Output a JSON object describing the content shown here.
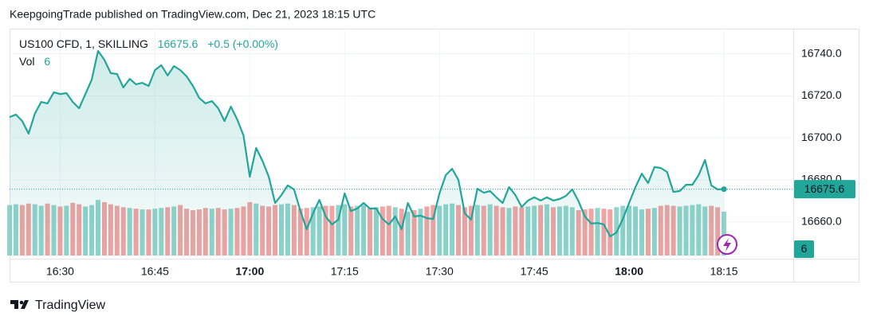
{
  "attribution": "KeepgoingTrade published on TradingView.com, Dec 21, 2023 18:15 UTC",
  "brand": "TradingView",
  "chart_data": {
    "type": "line",
    "change": "+0.5 (+0.00%)",
    "categories": [
      null,
      null,
      null,
      null,
      null,
      null,
      null,
      null,
      "16:30",
      null,
      null,
      null,
      null,
      null,
      null,
      null,
      null,
      null,
      null,
      null,
      null,
      null,
      null,
      "16:45",
      null,
      null,
      null,
      null,
      null,
      null,
      null,
      null,
      null,
      null,
      null,
      null,
      null,
      null,
      "17:00",
      null,
      null,
      null,
      null,
      null,
      null,
      null,
      null,
      null,
      null,
      null,
      null,
      null,
      null,
      "17:15",
      null,
      null,
      null,
      null,
      null,
      null,
      null,
      null,
      null,
      null,
      null,
      null,
      null,
      null,
      "17:30",
      null,
      null,
      null,
      null,
      null,
      null,
      null,
      null,
      null,
      null,
      null,
      null,
      null,
      null,
      "17:45",
      null,
      null,
      null,
      null,
      null,
      null,
      null,
      null,
      null,
      null,
      null,
      null,
      null,
      null,
      "18:00",
      null,
      null,
      null,
      null,
      null,
      null,
      null,
      null,
      null,
      null,
      null,
      null,
      null,
      null,
      "18:15"
    ],
    "series": [
      {
        "name": "US100 CFD, 1, SKILLING",
        "color": "#22a69a",
        "values": [
          16709.9,
          16711.1,
          16708.0,
          16702.0,
          16711.5,
          16717.1,
          16716.4,
          16721.7,
          16720.9,
          16721.3,
          16717.1,
          16714.1,
          16720.9,
          16727.8,
          16741.4,
          16737.2,
          16730.8,
          16730.4,
          16724.0,
          16728.1,
          16725.5,
          16726.2,
          16724.7,
          16732.3,
          16734.6,
          16729.7,
          16734.2,
          16732.3,
          16729.3,
          16724.7,
          16719.0,
          16716.4,
          16717.5,
          16714.1,
          16708.0,
          16714.9,
          16708.8,
          16701.2,
          16681.5,
          16695.2,
          16689.1,
          16681.5,
          16669.0,
          16672.8,
          16677.4,
          16675.5,
          16665.2,
          16656.5,
          16664.1,
          16670.5,
          16662.6,
          16658.8,
          16661.1,
          16673.6,
          16665.2,
          16666.4,
          16669.0,
          16666.4,
          16666.4,
          16661.4,
          16658.8,
          16662.6,
          16656.5,
          16669.0,
          16662.6,
          16663.0,
          16661.8,
          16661.4,
          16673.6,
          16682.3,
          16685.3,
          16680.0,
          16664.1,
          16661.1,
          16675.8,
          16673.9,
          16674.7,
          16671.7,
          16669.0,
          16676.6,
          16672.8,
          16667.1,
          16670.2,
          16671.7,
          16670.2,
          16671.7,
          16670.2,
          16670.9,
          16672.4,
          16675.5,
          16669.8,
          16662.6,
          16659.2,
          16659.5,
          16658.8,
          16653.1,
          16655.0,
          16661.4,
          16669.0,
          16676.6,
          16683.0,
          16678.5,
          16686.1,
          16685.7,
          16683.8,
          16674.3,
          16674.7,
          16677.7,
          16677.7,
          16682.3,
          16689.5,
          16677.4,
          16675.5,
          16675.6
        ]
      },
      {
        "name": "Vol",
        "axis": "y2",
        "up_color": "#92d3cb",
        "down_color": "#f2a3a3",
        "values": [
          6.9,
          7.0,
          6.9,
          7.1,
          7.0,
          6.8,
          7.1,
          6.9,
          6.7,
          6.8,
          7.2,
          7.0,
          6.7,
          6.9,
          7.6,
          7.3,
          7.0,
          6.8,
          6.6,
          6.5,
          6.4,
          6.3,
          6.3,
          6.4,
          6.5,
          6.6,
          6.7,
          6.9,
          6.4,
          6.2,
          6.3,
          6.5,
          6.4,
          6.5,
          6.3,
          6.4,
          6.5,
          6.7,
          7.3,
          7.1,
          6.8,
          6.7,
          6.9,
          7.0,
          7.1,
          6.9,
          6.4,
          6.5,
          6.6,
          6.7,
          6.8,
          6.8,
          6.9,
          7.0,
          6.7,
          6.8,
          6.9,
          6.5,
          6.6,
          6.7,
          6.8,
          6.6,
          6.4,
          6.0,
          6.2,
          6.4,
          6.7,
          6.9,
          6.8,
          7.0,
          7.1,
          6.9,
          6.6,
          6.8,
          6.9,
          6.8,
          7.0,
          6.8,
          6.6,
          6.5,
          6.7,
          6.6,
          6.7,
          6.8,
          6.9,
          7.0,
          6.6,
          6.7,
          6.8,
          6.6,
          6.2,
          6.3,
          6.4,
          6.5,
          6.4,
          6.3,
          6.6,
          6.8,
          6.8,
          6.7,
          6.3,
          6.4,
          6.5,
          6.8,
          6.9,
          6.8,
          6.7,
          6.8,
          6.9,
          7.0,
          6.7,
          6.8,
          6.6,
          6
        ]
      }
    ],
    "ylim": [
      16644,
      16752
    ],
    "yticks": [
      {
        "value": 16660,
        "label": "16660.0"
      },
      {
        "value": 16680,
        "label": "16680.0"
      },
      {
        "value": 16700,
        "label": "16700.0"
      },
      {
        "value": 16720,
        "label": "16720.0"
      },
      {
        "value": 16740,
        "label": "16740.0"
      }
    ],
    "y2lim": [
      0,
      31
    ],
    "grid": true
  }
}
